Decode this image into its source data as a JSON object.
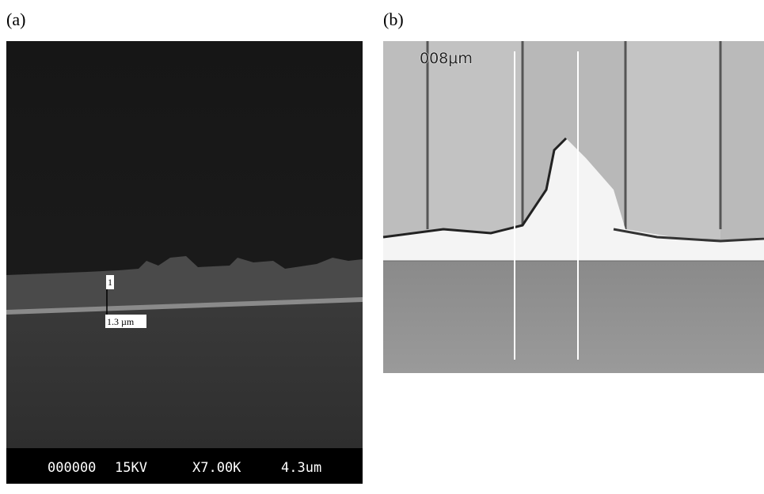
{
  "panels": [
    {
      "label": "(a)",
      "marker": "1",
      "thickness": "1.3 µm",
      "info_bar": [
        "000000",
        "15KV",
        "X7.00K",
        "4.3um"
      ]
    },
    {
      "label": "(b)",
      "scale_label": "008μm"
    }
  ]
}
